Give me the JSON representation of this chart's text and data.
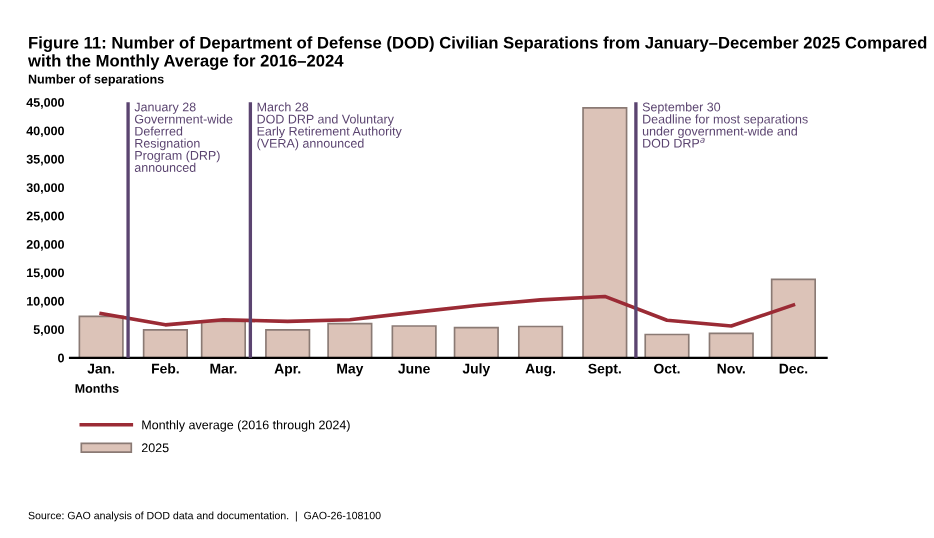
{
  "chart_data": {
    "type": "bar",
    "title": "Figure 11: Number of Department of Defense (DOD) Civilian Separations from January–December 2025 Compared with the Monthly Average for 2016–2024",
    "ylabel": "Number of separations",
    "xlabel": "Months",
    "x": [
      "2025-01-15",
      "2025-02-15",
      "2025-03-15",
      "2025-04-15",
      "2025-05-15",
      "2025-06-15",
      "2025-07-15",
      "2025-08-15",
      "2025-09-15",
      "2025-10-15",
      "2025-11-15",
      "2025-12-15"
    ],
    "xlim": [
      "2024-12-31",
      "2025-12-31"
    ],
    "xticks": [
      {
        "value": "2025-01-15",
        "label": "Jan."
      },
      {
        "value": "2025-02-15",
        "label": "Feb."
      },
      {
        "value": "2025-03-15",
        "label": "Mar."
      },
      {
        "value": "2025-04-15",
        "label": "Apr."
      },
      {
        "value": "2025-05-15",
        "label": "May"
      },
      {
        "value": "2025-06-15",
        "label": "June"
      },
      {
        "value": "2025-07-15",
        "label": "July"
      },
      {
        "value": "2025-08-15",
        "label": "Aug."
      },
      {
        "value": "2025-09-15",
        "label": "Sept."
      },
      {
        "value": "2025-10-15",
        "label": "Oct."
      },
      {
        "value": "2025-11-15",
        "label": "Nov."
      },
      {
        "value": "2025-12-15",
        "label": "Dec."
      }
    ],
    "series": [
      {
        "name": "Monthly average (2016 through 2024)",
        "type": "line",
        "color": "#9b2b35",
        "values": [
          7800,
          5800,
          6700,
          6400,
          6700,
          8000,
          9200,
          10200,
          10800,
          6600,
          5600,
          9300
        ]
      },
      {
        "name": "2025",
        "color": "#dcc3b8",
        "values": [
          7300,
          4900,
          6400,
          4900,
          6000,
          5600,
          5300,
          5500,
          44000,
          4100,
          4300,
          13800
        ]
      }
    ],
    "ylim": [
      0,
      45000
    ],
    "yticks": [
      {
        "value": 0,
        "label": "0"
      },
      {
        "value": 5000,
        "label": "5,000"
      },
      {
        "value": 10000,
        "label": "10,000"
      },
      {
        "value": 15000,
        "label": "15,000"
      },
      {
        "value": 20000,
        "label": "20,000"
      },
      {
        "value": 25000,
        "label": "25,000"
      },
      {
        "value": 30000,
        "label": "30,000"
      },
      {
        "value": 35000,
        "label": "35,000"
      },
      {
        "value": 40000,
        "label": "40,000"
      },
      {
        "value": 45000,
        "label": "45,000"
      }
    ],
    "ref_lines": [
      {
        "axis": "x",
        "value": "2025-01-28",
        "label": "January 28\nGovernment-wide\nDeferred\nResignation\nProgram (DRP)\nannounced",
        "color": "#5b4470"
      },
      {
        "axis": "x",
        "value": "2025-03-28",
        "label": "March 28\nDOD DRP and Voluntary\nEarly Retirement Authority\n(VERA) announced",
        "color": "#5b4470"
      },
      {
        "axis": "x",
        "value": "2025-09-30",
        "label": "September 30\nDeadline for most separations\nunder government-wide and\nDOD DRP$^{a}$",
        "color": "#5b4470"
      }
    ],
    "grid": false,
    "legend": "bottom",
    "annotations": [
      "Source: GAO analysis of DOD data and documentation.  |  GAO-26-108100"
    ]
  }
}
